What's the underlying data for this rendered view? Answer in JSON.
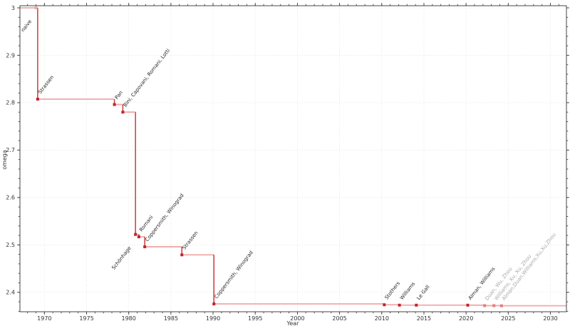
{
  "chart_data": {
    "type": "line",
    "step": "post",
    "title": "",
    "xlabel": "Year",
    "ylabel": "omega",
    "xlim": [
      1967.1,
      2031.9
    ],
    "ylim": [
      2.359,
      3.0045
    ],
    "x_major_ticks": [
      1970,
      1975,
      1980,
      1985,
      1990,
      1995,
      2000,
      2005,
      2010,
      2015,
      2020,
      2025,
      2030
    ],
    "y_major_ticks": [
      2.4,
      2.5,
      2.6,
      2.7,
      2.8,
      2.9,
      3
    ],
    "x_minor_step": 1,
    "y_minor_step": 0.02,
    "grid": "major-dotted",
    "legend": "none",
    "points": [
      {
        "year": 1969.0,
        "omega": 3.0,
        "label": "naive",
        "marker": "faint",
        "label_style": "dark",
        "label_side": "below"
      },
      {
        "year": 1969.2,
        "omega": 2.8074,
        "label": "Strassen",
        "marker": "dark",
        "label_style": "dark",
        "label_side": "above"
      },
      {
        "year": 1978.3,
        "omega": 2.796,
        "label": "Pan",
        "marker": "dark",
        "label_style": "dark",
        "label_side": "above"
      },
      {
        "year": 1979.3,
        "omega": 2.78,
        "label": "Bini, Capovani, Romani, Lotti",
        "marker": "dark",
        "label_style": "dark",
        "label_side": "above"
      },
      {
        "year": 1980.8,
        "omega": 2.522,
        "label": "Schönhage",
        "marker": "dark",
        "label_style": "dark",
        "label_side": "below"
      },
      {
        "year": 1981.2,
        "omega": 2.517,
        "label": "Romani",
        "marker": "dark",
        "label_style": "dark",
        "label_side": "above"
      },
      {
        "year": 1981.9,
        "omega": 2.496,
        "label": "Coppersmith, Winograd",
        "marker": "dark",
        "label_style": "dark",
        "label_side": "above"
      },
      {
        "year": 1986.3,
        "omega": 2.479,
        "label": "Strassen",
        "marker": "dark",
        "label_style": "dark",
        "label_side": "above"
      },
      {
        "year": 1990.1,
        "omega": 2.3755,
        "label": "Coppersmith, Winograd",
        "marker": "dark",
        "label_style": "dark",
        "label_side": "above"
      },
      {
        "year": 2010.3,
        "omega": 2.3737,
        "label": "Stothers",
        "marker": "dark",
        "label_style": "dark",
        "label_side": "above"
      },
      {
        "year": 2012.1,
        "omega": 2.3729,
        "label": "Williams",
        "marker": "dark",
        "label_style": "dark",
        "label_side": "above"
      },
      {
        "year": 2014.1,
        "omega": 2.3728639,
        "label": "Le Gall",
        "marker": "dark",
        "label_style": "dark",
        "label_side": "above"
      },
      {
        "year": 2020.2,
        "omega": 2.3728596,
        "label": "Alman, Williams",
        "marker": "dark",
        "label_style": "dark",
        "label_side": "above"
      },
      {
        "year": 2022.2,
        "omega": 2.37188,
        "label": "Duan, Wu, Zhou",
        "marker": "light",
        "label_style": "gray",
        "label_side": "above"
      },
      {
        "year": 2023.3,
        "omega": 2.371866,
        "label": "Williams, Xu, Xu, Zhou",
        "marker": "light",
        "label_style": "gray",
        "label_side": "above"
      },
      {
        "year": 2024.2,
        "omega": 2.371552,
        "label": "Alman,Duan,Williams,Xu,Xu,Zhou",
        "marker": "light",
        "label_style": "gray",
        "label_side": "above"
      }
    ]
  },
  "colors": {
    "step_line": "#f0a8a8",
    "drop_line": "#cf3a3a",
    "marker_dark": "#c0262c",
    "marker_light": "#e87c7c",
    "marker_faint": "#f0a8a8",
    "label_dark": "#262626",
    "label_gray": "#a8a8a8",
    "axis": "#444444",
    "tick_label": "#333333",
    "grid": "#dedede",
    "background": "#ffffff"
  }
}
